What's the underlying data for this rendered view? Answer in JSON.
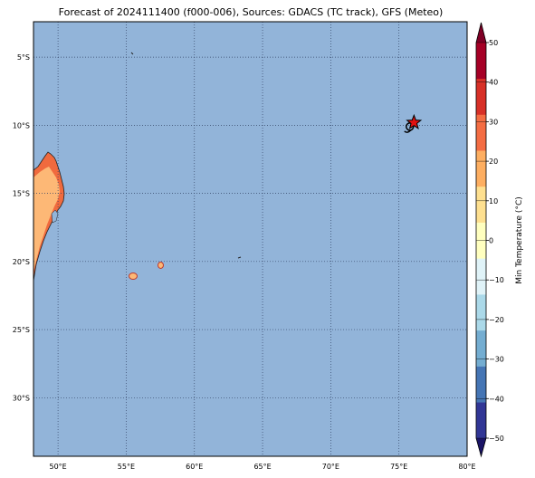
{
  "title": "Forecast of 2024111400 (f000-006), Sources: GDACS (TC track), GFS (Meteo)",
  "map": {
    "ocean_color": "#92b4d9",
    "lon_range": [
      48.2,
      80.0
    ],
    "lat_range": [
      -34.3,
      -2.4
    ],
    "lon_ticks": [
      {
        "value": 50,
        "label": "50°E"
      },
      {
        "value": 55,
        "label": "55°E"
      },
      {
        "value": 60,
        "label": "60°E"
      },
      {
        "value": 65,
        "label": "65°E"
      },
      {
        "value": 70,
        "label": "70°E"
      },
      {
        "value": 75,
        "label": "75°E"
      },
      {
        "value": 80,
        "label": "80°E"
      }
    ],
    "lat_ticks": [
      {
        "value": -5,
        "label": "5°S"
      },
      {
        "value": -10,
        "label": "10°S"
      },
      {
        "value": -15,
        "label": "15°S"
      },
      {
        "value": -20,
        "label": "20°S"
      },
      {
        "value": -25,
        "label": "25°S"
      },
      {
        "value": -30,
        "label": "30°S"
      }
    ],
    "gridlines": true,
    "cyclone_marker": {
      "lon": 76.1,
      "lat": -9.8,
      "symbol": "star",
      "color": "#e01010"
    },
    "track_marker": {
      "lon": 75.8,
      "lat": -10.1,
      "symbol": "tropical-cyclone-icon"
    }
  },
  "colorbar": {
    "label": "Min Temperature (°C)",
    "levels": [
      -50,
      -40,
      -30,
      -20,
      -10,
      0,
      10,
      20,
      30,
      40,
      50
    ],
    "level_labels": [
      "−50",
      "−40",
      "−30",
      "−20",
      "−10",
      "0",
      "10",
      "20",
      "30",
      "40",
      "50"
    ],
    "colors": [
      "#313695",
      "#4575b4",
      "#74add1",
      "#abd9e9",
      "#e0f3f8",
      "#ffffbf",
      "#fee090",
      "#fdae61",
      "#f46d43",
      "#d73027",
      "#a50026"
    ],
    "under_color": "#1a1466",
    "over_color": "#7f0026"
  }
}
